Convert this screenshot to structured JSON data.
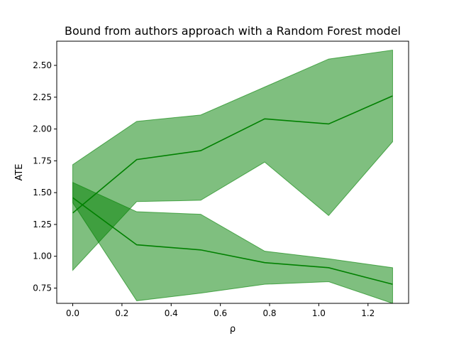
{
  "chart_data": {
    "type": "area",
    "title": "Bound from authors approach with a Random Forest model",
    "xlabel": "ρ",
    "ylabel": "ATE",
    "xlim": [
      -0.065,
      1.365
    ],
    "ylim": [
      0.63,
      2.69
    ],
    "xticks": [
      0.0,
      0.2,
      0.4,
      0.6,
      0.8,
      1.0,
      1.2
    ],
    "xtick_labels": [
      "0.0",
      "0.2",
      "0.4",
      "0.6",
      "0.8",
      "1.0",
      "1.2"
    ],
    "yticks": [
      0.75,
      1.0,
      1.25,
      1.5,
      1.75,
      2.0,
      2.25,
      2.5
    ],
    "ytick_labels": [
      "0.75",
      "1.00",
      "1.25",
      "1.50",
      "1.75",
      "2.00",
      "2.25",
      "2.50"
    ],
    "grid": false,
    "color": "#008000",
    "band_color": "#008000",
    "band_opacity": 0.5,
    "x": [
      0.0,
      0.26,
      0.52,
      0.78,
      1.04,
      1.3
    ],
    "series": [
      {
        "values": [
          1.34,
          1.76,
          1.83,
          2.08,
          2.04,
          2.26
        ],
        "lower": [
          0.89,
          1.43,
          1.44,
          1.74,
          1.32,
          1.9
        ],
        "upper": [
          1.72,
          2.06,
          2.11,
          2.33,
          2.55,
          2.62
        ]
      },
      {
        "values": [
          1.46,
          1.09,
          1.05,
          0.95,
          0.91,
          0.78
        ],
        "lower": [
          1.42,
          0.65,
          0.71,
          0.78,
          0.8,
          0.63
        ],
        "upper": [
          1.58,
          1.35,
          1.33,
          1.04,
          0.98,
          0.91
        ]
      }
    ]
  }
}
